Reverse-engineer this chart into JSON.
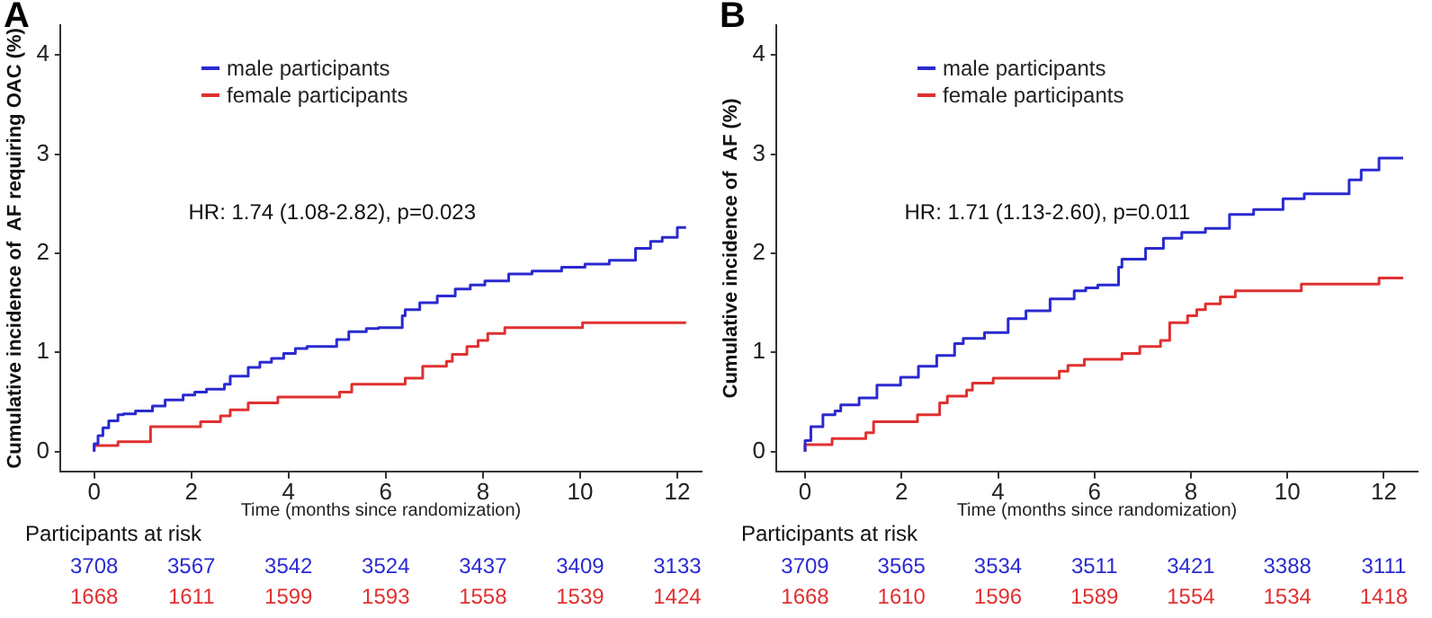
{
  "chart_data": [
    {
      "type": "step",
      "title": "A",
      "xlabel": "Time (months since randomization)",
      "ylabel": "Cumulative incidence of  AF requiring OAC (%)",
      "xlim": [
        -0.7,
        12.5
      ],
      "xticks": [
        0,
        2,
        4,
        6,
        8,
        10,
        12
      ],
      "ylim": [
        -0.2,
        4.3
      ],
      "yticks": [
        0,
        1,
        2,
        3,
        4
      ],
      "grid": false,
      "legend": "top",
      "marker": "none",
      "line_style": "solid",
      "series": [
        {
          "name": "male participants",
          "color": "#2a2ad0",
          "x": [
            0,
            0.08,
            0.18,
            0.3,
            0.49,
            0.6,
            0.85,
            1.2,
            1.46,
            1.83,
            2.07,
            2.31,
            2.68,
            2.8,
            3.17,
            3.41,
            3.65,
            3.9,
            4.14,
            4.38,
            4.99,
            5.24,
            5.6,
            5.85,
            6.34,
            6.4,
            6.7,
            7.06,
            7.43,
            7.74,
            8.04,
            8.53,
            9.01,
            9.62,
            10.1,
            10.6,
            11.14,
            11.45,
            11.69,
            12.0,
            12.18
          ],
          "values": [
            0,
            0.08,
            0.16,
            0.24,
            0.31,
            0.37,
            0.38,
            0.41,
            0.46,
            0.52,
            0.57,
            0.6,
            0.63,
            0.68,
            0.76,
            0.85,
            0.9,
            0.94,
            0.99,
            1.04,
            1.06,
            1.13,
            1.21,
            1.24,
            1.25,
            1.37,
            1.43,
            1.5,
            1.57,
            1.64,
            1.68,
            1.72,
            1.79,
            1.82,
            1.86,
            1.89,
            1.93,
            2.05,
            2.12,
            2.16,
            2.26
          ]
        },
        {
          "name": "female participants",
          "color": "#e03030",
          "x": [
            0,
            0.49,
            1.16,
            2.19,
            2.6,
            2.8,
            3.17,
            3.78,
            5.05,
            5.3,
            6.4,
            6.76,
            7.25,
            7.37,
            7.67,
            7.9,
            8.1,
            8.45,
            10.05,
            11.63,
            12.18
          ],
          "values": [
            0,
            0.06,
            0.1,
            0.25,
            0.3,
            0.36,
            0.42,
            0.49,
            0.55,
            0.6,
            0.68,
            0.74,
            0.86,
            0.91,
            0.98,
            1.06,
            1.12,
            1.19,
            1.25,
            1.3,
            1.3
          ]
        }
      ],
      "annotations": [
        "HR: 1.74 (1.08-2.82), p=0.023",
        "Participants at risk",
        "3708",
        "3567",
        "3542",
        "3524",
        "3437",
        "3409",
        "3133",
        "1668",
        "1611",
        "1599",
        "1593",
        "1558",
        "1539",
        "1424"
      ]
    },
    {
      "type": "step",
      "title": "B",
      "xlabel": "Time (months since randomization)",
      "ylabel": "Cumulative incidence of  AF (%)",
      "xlim": [
        -0.6,
        12.7
      ],
      "xticks": [
        0,
        2,
        4,
        6,
        8,
        10,
        12
      ],
      "ylim": [
        -0.2,
        4.3
      ],
      "yticks": [
        0,
        1,
        2,
        3,
        4
      ],
      "grid": false,
      "legend": "top",
      "marker": "none",
      "line_style": "solid",
      "series": [
        {
          "name": "male participants",
          "color": "#2a2ad0",
          "x": [
            0,
            0.12,
            0.37,
            0.62,
            0.74,
            1.12,
            1.49,
            1.98,
            2.35,
            2.73,
            3.1,
            3.28,
            3.72,
            4.21,
            4.58,
            5.08,
            5.58,
            5.82,
            6.07,
            6.5,
            6.57,
            7.06,
            7.43,
            7.81,
            8.3,
            8.8,
            9.3,
            9.91,
            10.35,
            11.28,
            11.53,
            11.9,
            12.4
          ],
          "values": [
            0,
            0.11,
            0.25,
            0.37,
            0.41,
            0.47,
            0.54,
            0.67,
            0.75,
            0.86,
            0.97,
            1.09,
            1.14,
            1.2,
            1.34,
            1.42,
            1.54,
            1.62,
            1.65,
            1.68,
            1.86,
            1.94,
            2.05,
            2.15,
            2.21,
            2.25,
            2.39,
            2.44,
            2.55,
            2.6,
            2.74,
            2.84,
            2.96
          ]
        },
        {
          "name": "female participants",
          "color": "#e03030",
          "x": [
            0,
            0.56,
            1.26,
            1.42,
            2.33,
            2.79,
            2.95,
            3.35,
            3.47,
            3.9,
            5.27,
            5.45,
            5.79,
            6.57,
            6.94,
            7.37,
            7.56,
            7.93,
            8.12,
            8.3,
            8.61,
            8.92,
            10.29,
            11.9,
            12.14,
            12.4
          ],
          "values": [
            0,
            0.07,
            0.13,
            0.19,
            0.3,
            0.37,
            0.49,
            0.56,
            0.62,
            0.69,
            0.74,
            0.81,
            0.87,
            0.93,
            0.99,
            1.06,
            1.12,
            1.3,
            1.37,
            1.43,
            1.49,
            1.56,
            1.62,
            1.69,
            1.75,
            1.75
          ]
        }
      ],
      "annotations": [
        "HR: 1.71 (1.13-2.60), p=0.011",
        "Participants at risk",
        "3709",
        "3565",
        "3534",
        "3511",
        "3421",
        "3388",
        "3111",
        "1668",
        "1610",
        "1596",
        "1589",
        "1554",
        "1534",
        "1418"
      ]
    }
  ]
}
